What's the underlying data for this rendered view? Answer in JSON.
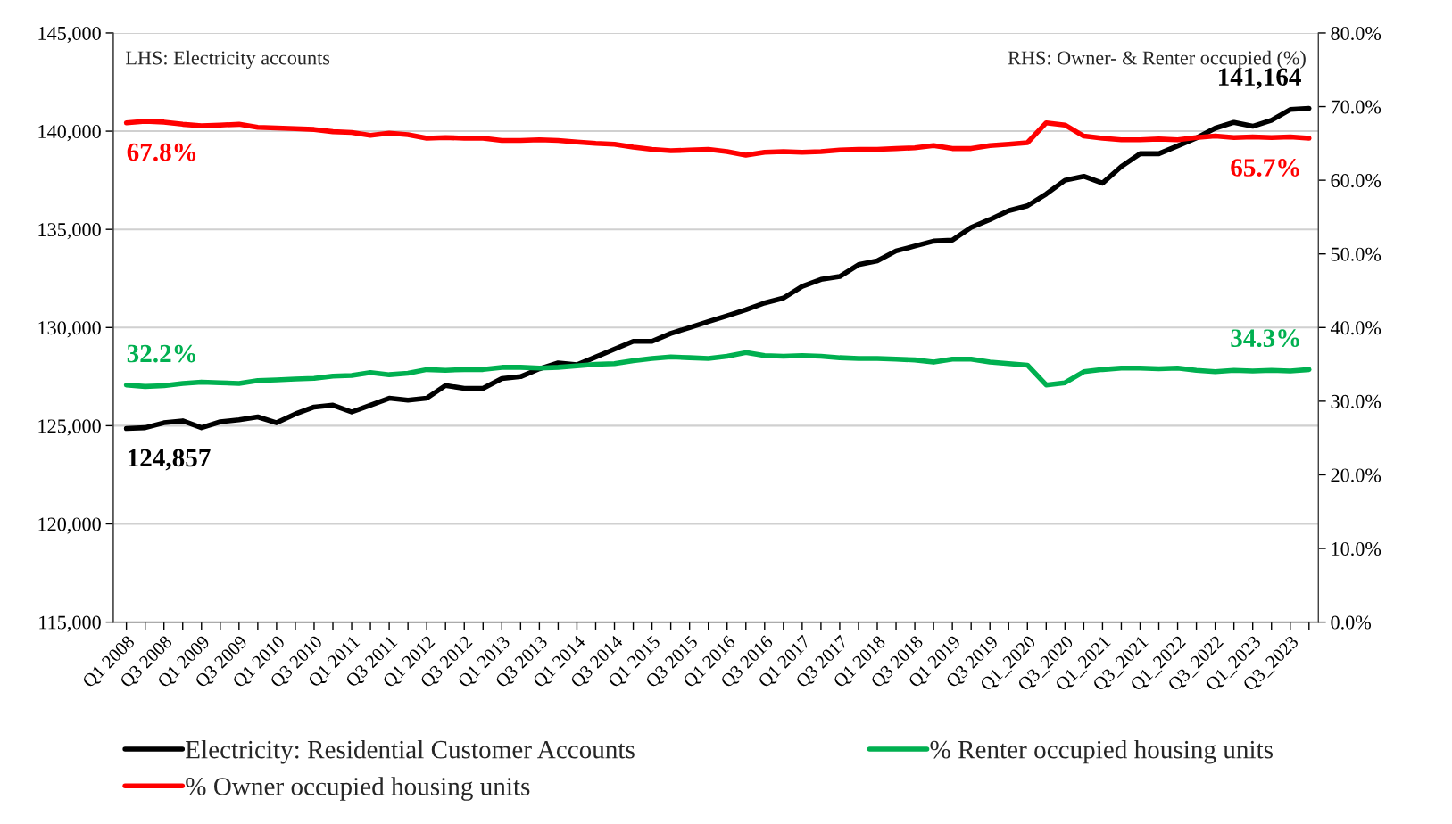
{
  "chart_data": {
    "type": "line",
    "categories": [
      "Q1 2008",
      null,
      "Q3 2008",
      null,
      "Q1 2009",
      null,
      "Q3 2009",
      null,
      "Q1 2010",
      null,
      "Q3 2010",
      null,
      "Q1 2011",
      null,
      "Q3 2011",
      null,
      "Q1 2012",
      null,
      "Q3 2012",
      null,
      "Q1 2013",
      null,
      "Q3 2013",
      null,
      "Q1 2014",
      null,
      "Q3 2014",
      null,
      "Q1 2015",
      null,
      "Q3 2015",
      null,
      "Q1 2016",
      null,
      "Q3 2016",
      null,
      "Q1 2017",
      null,
      "Q3 2017",
      null,
      "Q1 2018",
      null,
      "Q3 2018",
      null,
      "Q1 2019",
      null,
      "Q3 2019",
      null,
      "Q1_2020",
      null,
      "Q3_2020",
      null,
      "Q1_2021",
      null,
      "Q3_2021",
      null,
      "Q1_2022",
      null,
      "Q3_2022",
      null,
      "Q1_2023",
      null,
      "Q3_2023",
      null
    ],
    "series": [
      {
        "name": "Electricity: Residential Customer Accounts",
        "color": "#000000",
        "values": [
          124857,
          124900,
          125150,
          125250,
          124900,
          125200,
          125300,
          125450,
          125150,
          125600,
          125950,
          126050,
          125700,
          126050,
          126400,
          126300,
          126400,
          127050,
          126900,
          126900,
          127400,
          127500,
          127900,
          128200,
          128100,
          128500,
          128900,
          129300,
          129300,
          129700,
          130000,
          130300,
          130600,
          130900,
          131250,
          131500,
          132100,
          132450,
          132600,
          133200,
          133400,
          133900,
          134150,
          134400,
          134450,
          135100,
          135500,
          135950,
          136200,
          136800,
          137500,
          137700,
          137350,
          138200,
          138850,
          138850,
          139250,
          139650,
          140150,
          140450,
          140250,
          140550,
          141100,
          141164
        ],
        "value_labels": [
          "124,857",
          null,
          null,
          null,
          null,
          null,
          null,
          null,
          null,
          null,
          null,
          null,
          null,
          null,
          null,
          null,
          null,
          null,
          null,
          null,
          null,
          null,
          null,
          null,
          null,
          null,
          null,
          null,
          null,
          null,
          null,
          null,
          null,
          null,
          null,
          null,
          null,
          null,
          null,
          null,
          null,
          null,
          null,
          null,
          null,
          null,
          null,
          null,
          null,
          null,
          null,
          null,
          null,
          null,
          null,
          null,
          null,
          null,
          null,
          null,
          null,
          null,
          null,
          "141,164"
        ]
      },
      {
        "name": "% Owner occupied housing units",
        "color": "#ff0000",
        "axis": "y2",
        "values": [
          67.8,
          68.0,
          67.9,
          67.6,
          67.4,
          67.5,
          67.6,
          67.2,
          67.1,
          67.0,
          66.9,
          66.6,
          66.5,
          66.1,
          66.4,
          66.2,
          65.7,
          65.8,
          65.7,
          65.7,
          65.4,
          65.4,
          65.5,
          65.4,
          65.2,
          65.0,
          64.9,
          64.5,
          64.2,
          64.0,
          64.1,
          64.2,
          63.9,
          63.4,
          63.8,
          63.9,
          63.8,
          63.9,
          64.1,
          64.2,
          64.2,
          64.3,
          64.4,
          64.7,
          64.3,
          64.3,
          64.7,
          64.9,
          65.1,
          67.8,
          67.5,
          66.0,
          65.7,
          65.5,
          65.5,
          65.6,
          65.5,
          65.8,
          66.0,
          65.8,
          65.9,
          65.8,
          65.9,
          65.7
        ],
        "value_labels": [
          "67.8%",
          null,
          null,
          null,
          null,
          null,
          null,
          null,
          null,
          null,
          null,
          null,
          null,
          null,
          null,
          null,
          null,
          null,
          null,
          null,
          null,
          null,
          null,
          null,
          null,
          null,
          null,
          null,
          null,
          null,
          null,
          null,
          null,
          null,
          null,
          null,
          null,
          null,
          null,
          null,
          null,
          null,
          null,
          null,
          null,
          null,
          null,
          null,
          null,
          null,
          null,
          null,
          null,
          null,
          null,
          null,
          null,
          null,
          null,
          null,
          null,
          null,
          null,
          "65.7%"
        ]
      },
      {
        "name": "% Renter occupied housing units",
        "color": "#00b050",
        "axis": "y2",
        "values": [
          32.2,
          32.0,
          32.1,
          32.4,
          32.6,
          32.5,
          32.4,
          32.8,
          32.9,
          33.0,
          33.1,
          33.4,
          33.5,
          33.9,
          33.6,
          33.8,
          34.3,
          34.2,
          34.3,
          34.3,
          34.6,
          34.6,
          34.5,
          34.6,
          34.8,
          35.0,
          35.1,
          35.5,
          35.8,
          36.0,
          35.9,
          35.8,
          36.1,
          36.6,
          36.2,
          36.1,
          36.2,
          36.1,
          35.9,
          35.8,
          35.8,
          35.7,
          35.6,
          35.3,
          35.7,
          35.7,
          35.3,
          35.1,
          34.9,
          32.2,
          32.5,
          34.0,
          34.3,
          34.5,
          34.5,
          34.4,
          34.5,
          34.2,
          34.0,
          34.2,
          34.1,
          34.2,
          34.1,
          34.3
        ],
        "value_labels": [
          "32.2%",
          null,
          null,
          null,
          null,
          null,
          null,
          null,
          null,
          null,
          null,
          null,
          null,
          null,
          null,
          null,
          null,
          null,
          null,
          null,
          null,
          null,
          null,
          null,
          null,
          null,
          null,
          null,
          null,
          null,
          null,
          null,
          null,
          null,
          null,
          null,
          null,
          null,
          null,
          null,
          null,
          null,
          null,
          null,
          null,
          null,
          null,
          null,
          null,
          null,
          null,
          null,
          null,
          null,
          null,
          null,
          null,
          null,
          null,
          null,
          null,
          null,
          null,
          "34.3%"
        ]
      }
    ],
    "ylim": [
      115000,
      145000
    ],
    "yticks": [
      {
        "value": 115000,
        "label": "115,000"
      },
      {
        "value": 120000,
        "label": "120,000"
      },
      {
        "value": 125000,
        "label": "125,000"
      },
      {
        "value": 130000,
        "label": "130,000"
      },
      {
        "value": 135000,
        "label": "135,000"
      },
      {
        "value": 140000,
        "label": "140,000"
      },
      {
        "value": 145000,
        "label": "145,000"
      }
    ],
    "y2lim": [
      0,
      80
    ],
    "y2ticks": [
      {
        "value": 0,
        "label": "0.0%"
      },
      {
        "value": 10,
        "label": "10.0%"
      },
      {
        "value": 20,
        "label": "20.0%"
      },
      {
        "value": 30,
        "label": "30.0%"
      },
      {
        "value": 40,
        "label": "40.0%"
      },
      {
        "value": 50,
        "label": "50.0%"
      },
      {
        "value": 60,
        "label": "60.0%"
      },
      {
        "value": 70,
        "label": "70.0%"
      },
      {
        "value": 80,
        "label": "80.0%"
      }
    ],
    "annotations": [
      "LHS: Electricity accounts",
      "RHS: Owner- & Renter occupied (%)"
    ],
    "grid": "y",
    "legend": "bottom",
    "line_style": "solid",
    "marker": "none"
  }
}
